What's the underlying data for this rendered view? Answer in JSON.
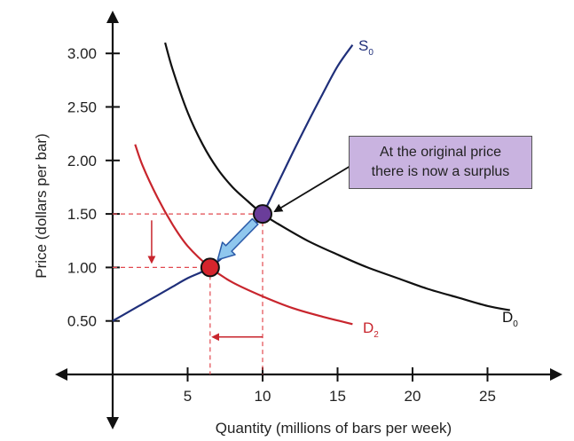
{
  "chart_data": {
    "type": "line",
    "title": "",
    "xlabel": "Quantity (millions of bars per week)",
    "ylabel": "Price (dollars per bar)",
    "xlim": [
      -3.5,
      29
    ],
    "ylim": [
      -0.35,
      3.15
    ],
    "x_ticks": [
      5,
      10,
      15,
      20,
      25
    ],
    "y_ticks": [
      0.5,
      1.0,
      1.5,
      2.0,
      2.5,
      3.0
    ],
    "x_tick_labels": [
      "5",
      "10",
      "15",
      "20",
      "25"
    ],
    "y_tick_labels": [
      "0.50",
      "1.00",
      "1.50",
      "2.00",
      "2.50",
      "3.00"
    ],
    "series": [
      {
        "name": "S0",
        "color": "#1f2f7a",
        "x": [
          0,
          1,
          2,
          3,
          4,
          5,
          6.5,
          8,
          9,
          10,
          11,
          12,
          13,
          14,
          15,
          16
        ],
        "y": [
          0.5,
          0.58,
          0.66,
          0.74,
          0.82,
          0.9,
          1.0,
          1.18,
          1.32,
          1.5,
          1.78,
          2.07,
          2.35,
          2.62,
          2.88,
          3.08
        ]
      },
      {
        "name": "D0",
        "color": "#111111",
        "x": [
          3.5,
          4,
          5,
          6,
          7,
          8,
          9,
          10,
          11,
          13,
          15,
          17,
          19,
          21,
          23,
          25,
          26.5
        ],
        "y": [
          3.1,
          2.85,
          2.45,
          2.15,
          1.92,
          1.75,
          1.62,
          1.5,
          1.41,
          1.25,
          1.12,
          1.0,
          0.9,
          0.8,
          0.72,
          0.64,
          0.6
        ]
      },
      {
        "name": "D2",
        "color": "#c8252d",
        "x": [
          1.5,
          2,
          3,
          4,
          5,
          6.5,
          8,
          10,
          12,
          14,
          16
        ],
        "y": [
          2.15,
          1.95,
          1.65,
          1.4,
          1.2,
          1.0,
          0.86,
          0.73,
          0.62,
          0.54,
          0.47
        ]
      }
    ],
    "points": [
      {
        "name": "original-equilibrium",
        "x": 10,
        "y": 1.5,
        "color": "#6a3d9a"
      },
      {
        "name": "new-equilibrium",
        "x": 6.5,
        "y": 1.0,
        "color": "#d6252d"
      }
    ],
    "labels": {
      "S0": "S",
      "S0_sub": "0",
      "D0": "D",
      "D0_sub": "0",
      "D2": "D",
      "D2_sub": "2"
    },
    "callout": "At the original price\nthere is now a surplus",
    "grid": false,
    "legend": "none"
  }
}
